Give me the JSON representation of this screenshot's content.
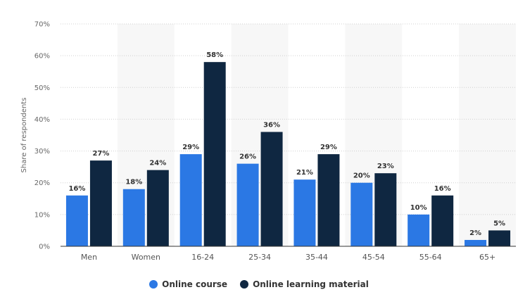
{
  "chart_data": {
    "type": "bar",
    "categories": [
      "Men",
      "Women",
      "16-24",
      "25-34",
      "35-44",
      "45-54",
      "55-64",
      "65+"
    ],
    "series": [
      {
        "name": "Online course",
        "values": [
          16,
          18,
          29,
          26,
          21,
          20,
          10,
          2
        ],
        "color": "#2b78e4"
      },
      {
        "name": "Online learning material",
        "values": [
          27,
          24,
          58,
          36,
          29,
          23,
          16,
          5
        ],
        "color": "#0f2741"
      }
    ],
    "ylabel": "Share of respondents",
    "ylim": [
      0,
      70
    ],
    "yticks": [
      "0%",
      "10%",
      "20%",
      "30%",
      "40%",
      "50%",
      "60%",
      "70%"
    ],
    "value_suffix": "%",
    "grid": true,
    "legend_position": "bottom"
  }
}
